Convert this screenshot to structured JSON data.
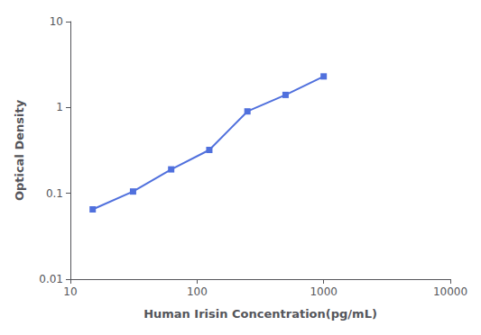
{
  "chart_data": {
    "type": "line",
    "xlabel": "Human Irisin Concentration(pg/mL)",
    "ylabel": "Optical Density",
    "x": [
      15,
      31.25,
      62.5,
      125,
      250,
      500,
      1000
    ],
    "values": [
      0.065,
      0.105,
      0.19,
      0.32,
      0.9,
      1.4,
      2.3
    ],
    "xlim": [
      10,
      10000
    ],
    "ylim": [
      0.01,
      10
    ],
    "xticks": [
      10,
      100,
      1000,
      10000
    ],
    "yticks": [
      0.01,
      0.1,
      1,
      10
    ],
    "log": true,
    "grid": false,
    "marker": "square"
  }
}
